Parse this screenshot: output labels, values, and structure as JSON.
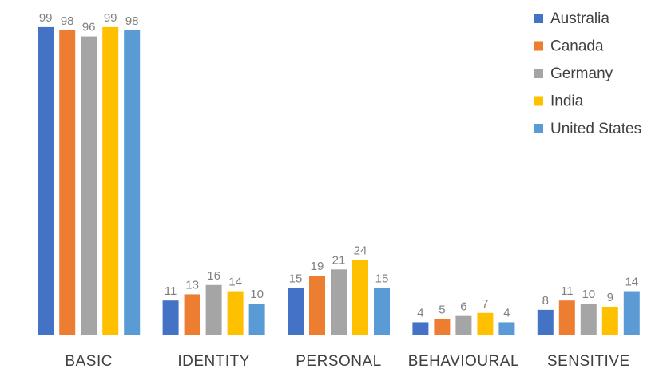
{
  "chart_data": {
    "type": "bar",
    "title": "",
    "xlabel": "",
    "ylabel": "",
    "ylim": [
      0,
      100
    ],
    "grid": false,
    "legend_position": "top-right",
    "categories": [
      "BASIC",
      "IDENTITY",
      "PERSONAL",
      "BEHAVIOURAL",
      "SENSITIVE"
    ],
    "series": [
      {
        "name": "Australia",
        "color": "#4472C4",
        "values": [
          99,
          11,
          15,
          4,
          8
        ]
      },
      {
        "name": "Canada",
        "color": "#ED7D31",
        "values": [
          98,
          13,
          19,
          5,
          11
        ]
      },
      {
        "name": "Germany",
        "color": "#A5A5A5",
        "values": [
          96,
          16,
          21,
          6,
          10
        ]
      },
      {
        "name": "India",
        "color": "#FFC000",
        "values": [
          99,
          14,
          24,
          7,
          9
        ]
      },
      {
        "name": "United States",
        "color": "#5B9BD5",
        "values": [
          98,
          10,
          15,
          4,
          14
        ]
      }
    ],
    "axis_color": "#d9d9d9"
  }
}
